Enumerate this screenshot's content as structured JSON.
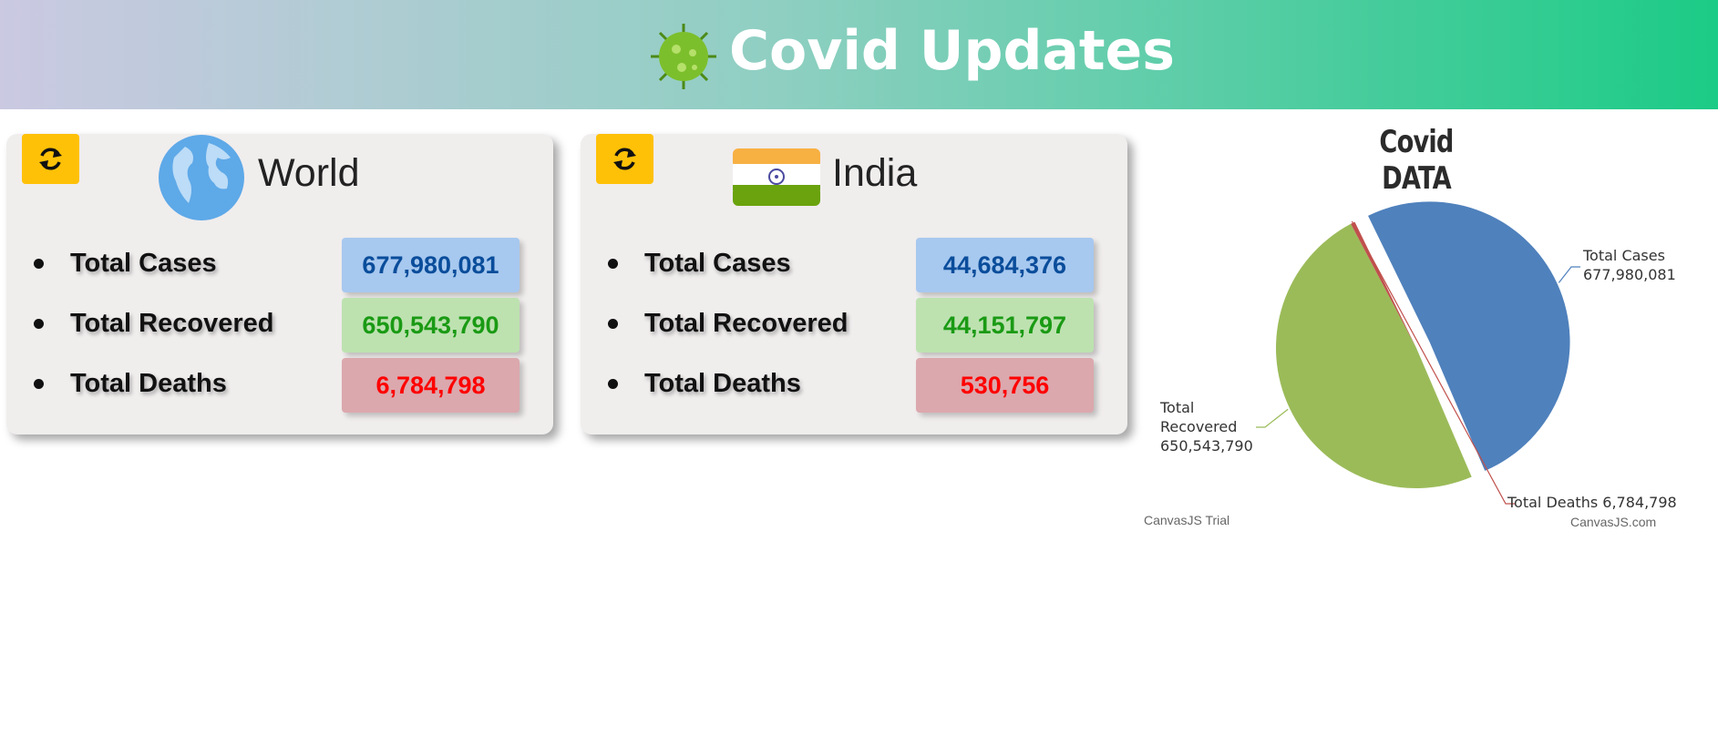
{
  "header": {
    "title": "Covid Updates"
  },
  "cards": [
    {
      "title": "World",
      "stats": [
        {
          "label": "Total Cases",
          "value": "677,980,081"
        },
        {
          "label": "Total Recovered",
          "value": "650,543,790"
        },
        {
          "label": "Total Deaths",
          "value": "6,784,798"
        }
      ]
    },
    {
      "title": "India",
      "stats": [
        {
          "label": "Total Cases",
          "value": "44,684,376"
        },
        {
          "label": "Total Recovered",
          "value": "44,151,797"
        },
        {
          "label": "Total Deaths",
          "value": "530,756"
        }
      ]
    }
  ],
  "chart_data": {
    "type": "pie",
    "title": "Covid DATA",
    "categories": [
      "Total Cases",
      "Total Recovered",
      "Total Deaths"
    ],
    "values": [
      677980081,
      650543790,
      6784798
    ],
    "value_labels": [
      "677,980,081",
      "650,543,790",
      "6,784,798"
    ],
    "colors": [
      "#4f81bc",
      "#9bbb59",
      "#c0504d"
    ],
    "exploded": [
      true,
      false,
      false
    ],
    "watermarks": [
      "CanvasJS Trial",
      "CanvasJS.com"
    ]
  }
}
